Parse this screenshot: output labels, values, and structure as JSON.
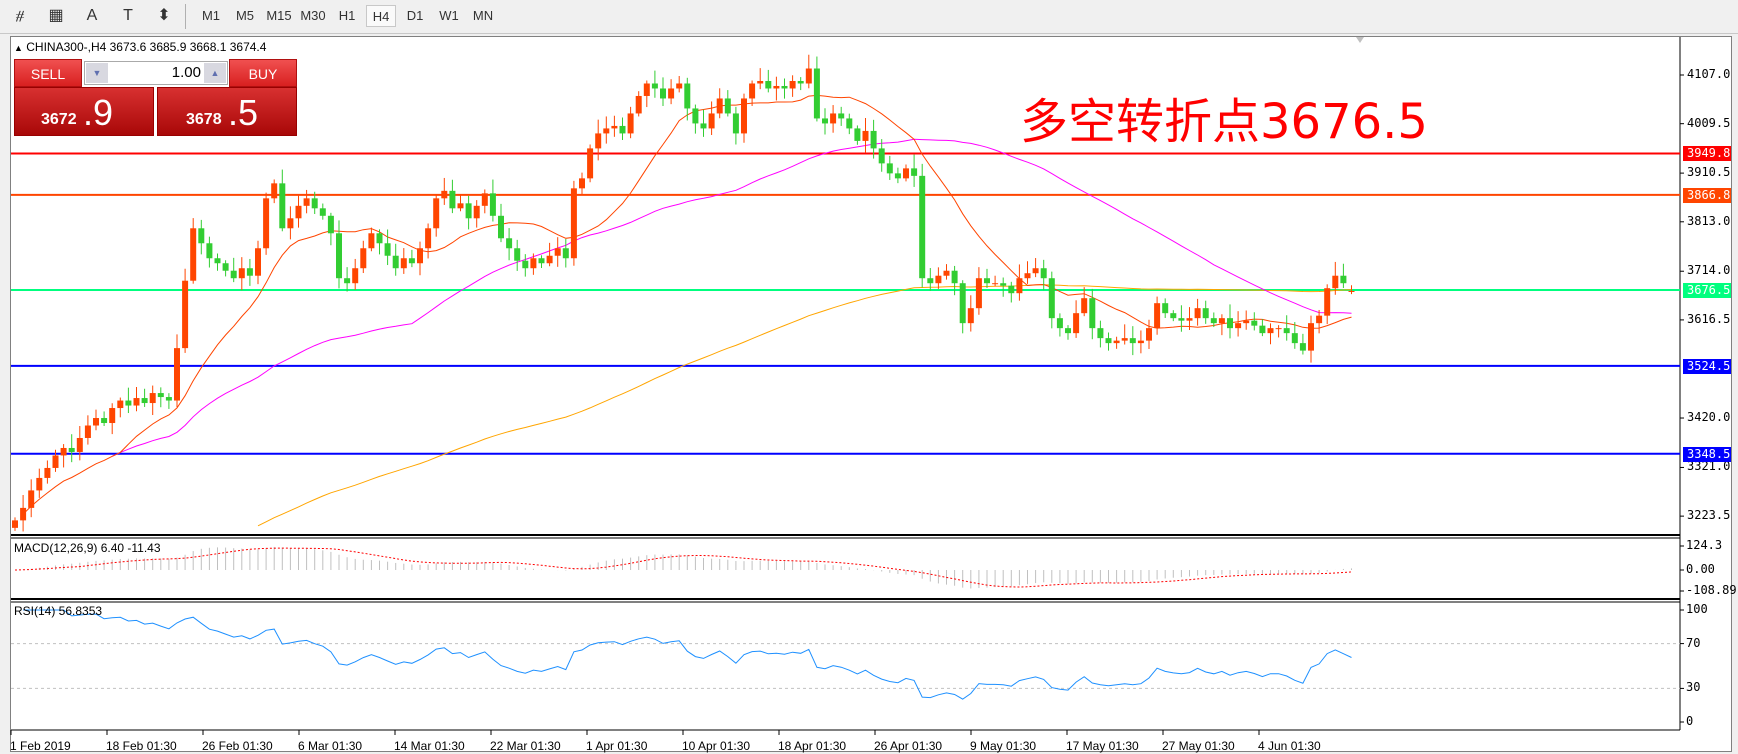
{
  "toolbar": {
    "icons": [
      "fibonacci-expansion-icon",
      "fibonacci-fan-icon",
      "text-icon",
      "text-label-icon",
      "arrows-dropdown-icon"
    ],
    "icon_glyphs": [
      "⧣",
      "▦",
      "A",
      "T",
      "⬍"
    ],
    "timeframes": [
      "M1",
      "M5",
      "M15",
      "M30",
      "H1",
      "H4",
      "D1",
      "W1",
      "MN"
    ],
    "active_timeframe": "H4"
  },
  "chart": {
    "title": "CHINA300-,H4  3673.6 3685.9 3668.1 3674.4",
    "last_bar": {
      "open": 3673.6,
      "high": 3685.9,
      "low": 3668.1,
      "close": 3674.4
    },
    "annotation": "多空转折点3676.5",
    "annotation_color": "#ff0000",
    "colors": {
      "bull": "#ff4500",
      "bear": "#32cd32",
      "ma_fast": "#ff4500",
      "ma_mid": "#ff00ff",
      "ma_slow": "#ffa500"
    }
  },
  "trade_panel": {
    "sell_label": "SELL",
    "buy_label": "BUY",
    "lot": "1.00",
    "sell_price_small": "3672",
    "sell_price_big": ".9",
    "buy_price_small": "3678",
    "buy_price_big": ".5"
  },
  "chart_data": {
    "type": "candlestick",
    "symbol": "CHINA300-",
    "timeframe": "H4",
    "ylim": [
      3170,
      4170
    ],
    "y_ticks": [
      "4107.0",
      "4009.5",
      "3910.5",
      "3813.0",
      "3714.0",
      "3616.5",
      "3420.0",
      "3321.0",
      "3223.5"
    ],
    "closes": [
      3215,
      3240,
      3275,
      3300,
      3320,
      3345,
      3360,
      3352,
      3380,
      3405,
      3420,
      3410,
      3440,
      3455,
      3445,
      3460,
      3450,
      3470,
      3462,
      3455,
      3560,
      3695,
      3800,
      3770,
      3740,
      3730,
      3715,
      3700,
      3720,
      3705,
      3760,
      3860,
      3890,
      3800,
      3820,
      3845,
      3860,
      3840,
      3825,
      3790,
      3700,
      3690,
      3720,
      3760,
      3790,
      3770,
      3745,
      3720,
      3740,
      3730,
      3760,
      3800,
      3860,
      3875,
      3840,
      3850,
      3820,
      3845,
      3870,
      3825,
      3780,
      3760,
      3735,
      3720,
      3740,
      3730,
      3745,
      3760,
      3740,
      3880,
      3900,
      3960,
      3990,
      4000,
      4005,
      3990,
      4030,
      4065,
      4090,
      4080,
      4060,
      4080,
      4090,
      4040,
      4010,
      4000,
      4030,
      4060,
      4030,
      3990,
      4060,
      4090,
      4095,
      4080,
      4085,
      4080,
      4095,
      4090,
      4120,
      4020,
      4010,
      4030,
      4020,
      4000,
      3975,
      3995,
      3960,
      3930,
      3910,
      3900,
      3920,
      3905,
      3700,
      3690,
      3705,
      3715,
      3690,
      3610,
      3640,
      3700,
      3690,
      3690,
      3685,
      3670,
      3700,
      3710,
      3720,
      3700,
      3620,
      3600,
      3590,
      3630,
      3660,
      3600,
      3580,
      3570,
      3575,
      3580,
      3570,
      3575,
      3600,
      3650,
      3630,
      3620,
      3615,
      3620,
      3640,
      3620,
      3610,
      3620,
      3600,
      3610,
      3615,
      3605,
      3590,
      3600,
      3600,
      3590,
      3570,
      3555,
      3610,
      3625,
      3680,
      3705,
      3690,
      3674.4
    ],
    "horizontal_lines": [
      {
        "price": 3949.8,
        "label": "3949.8",
        "color": "#ff0000"
      },
      {
        "price": 3866.8,
        "label": "3866.8",
        "color": "#ff4500"
      },
      {
        "price": 3676.5,
        "label": "3676.5",
        "color": "#00ff7f"
      },
      {
        "price": 3524.5,
        "label": "3524.5",
        "color": "#0000ff"
      },
      {
        "price": 3348.5,
        "label": "3348.5",
        "color": "#0000ff"
      }
    ],
    "x_labels": [
      {
        "bar": 0,
        "label": "1 Feb 2019"
      },
      {
        "bar": 12,
        "label": "18 Feb 01:30"
      },
      {
        "bar": 24,
        "label": "26 Feb 01:30"
      },
      {
        "bar": 36,
        "label": "6 Mar 01:30"
      },
      {
        "bar": 48,
        "label": "14 Mar 01:30"
      },
      {
        "bar": 60,
        "label": "22 Mar 01:30"
      },
      {
        "bar": 72,
        "label": "1 Apr 01:30"
      },
      {
        "bar": 84,
        "label": "10 Apr 01:30"
      },
      {
        "bar": 96,
        "label": "18 Apr 01:30"
      },
      {
        "bar": 108,
        "label": "26 Apr 01:30"
      },
      {
        "bar": 120,
        "label": "9 May 01:30"
      },
      {
        "bar": 132,
        "label": "17 May 01:30"
      },
      {
        "bar": 144,
        "label": "27 May 01:30"
      },
      {
        "bar": 156,
        "label": "4 Jun 01:30"
      }
    ],
    "macd": {
      "title": "MACD(12,26,9) 6.40 -11.43",
      "ticks": [
        "124.3",
        "0.00",
        "-108.89"
      ],
      "ylim": [
        -108.89,
        124.3
      ],
      "hist_color": "#c0c0c0",
      "signal_color": "#ff0000"
    },
    "rsi": {
      "title": "RSI(14) 56.8353",
      "ticks": [
        "100",
        "70",
        "30",
        "0"
      ],
      "levels": [
        70,
        30
      ],
      "color": "#1e90ff"
    }
  }
}
